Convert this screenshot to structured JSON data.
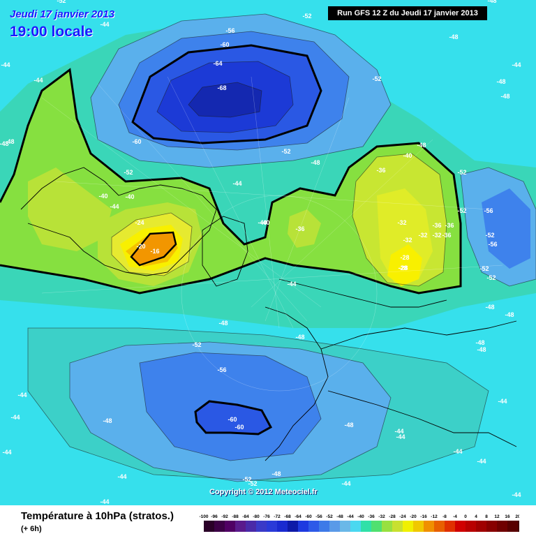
{
  "header": {
    "date": "Jeudi 17 janvier 2013",
    "time": "19:00 locale",
    "run": "Run GFS 12 Z du Jeudi 17 janvier 2013"
  },
  "copyright": "Copyright © 2012 Meteociel.fr",
  "footer": {
    "title": "Température à 10hPa (stratos.)",
    "subtitle": "(+ 6h)"
  },
  "legend": {
    "ticks": [
      "-100",
      "-96",
      "-92",
      "-88",
      "-84",
      "-80",
      "-76",
      "-72",
      "-68",
      "-64",
      "-60",
      "-56",
      "-52",
      "-48",
      "-44",
      "-40",
      "-36",
      "-32",
      "-28",
      "-24",
      "-20",
      "-16",
      "-12",
      "-8",
      "-4",
      "0",
      "4",
      "8",
      "12",
      "16",
      "20"
    ],
    "colors": [
      "#2a0028",
      "#3c0046",
      "#500064",
      "#5a1a8c",
      "#4a2aa8",
      "#3a3ac8",
      "#2a3ad8",
      "#1a2ad0",
      "#0e1aa8",
      "#1e3ae0",
      "#2e5ae8",
      "#3e7ae8",
      "#5a9ae8",
      "#6ab8e8",
      "#4ad8f0",
      "#30e0a8",
      "#50e070",
      "#98e040",
      "#c8e030",
      "#f0f000",
      "#f0c800",
      "#f09000",
      "#e86000",
      "#e03000",
      "#d00000",
      "#b80000",
      "#a00000",
      "#880000",
      "#700000",
      "#580000",
      "#400000"
    ]
  },
  "contour_labels": [
    {
      "text": "-52"
    },
    {
      "text": "-48"
    },
    {
      "text": "-44"
    },
    {
      "text": "-44"
    },
    {
      "text": "-44"
    },
    {
      "text": "-48"
    },
    {
      "text": "-52"
    },
    {
      "text": "-52"
    },
    {
      "text": "-56"
    },
    {
      "text": "-60"
    },
    {
      "text": "-64"
    },
    {
      "text": "-68"
    },
    {
      "text": "-60"
    },
    {
      "text": "-52"
    },
    {
      "text": "-48"
    },
    {
      "text": "-52"
    },
    {
      "text": "-48"
    },
    {
      "text": "-48"
    },
    {
      "text": "-48"
    },
    {
      "text": "-44"
    },
    {
      "text": "-48"
    },
    {
      "text": "-48"
    },
    {
      "text": "-52"
    },
    {
      "text": "-40"
    },
    {
      "text": "-44"
    },
    {
      "text": "-40"
    },
    {
      "text": "-44"
    },
    {
      "text": "-40"
    },
    {
      "text": "-44"
    },
    {
      "text": "-36"
    },
    {
      "text": "-32"
    },
    {
      "text": "-28"
    },
    {
      "text": "-24"
    },
    {
      "text": "-20"
    },
    {
      "text": "-16"
    },
    {
      "text": "-40"
    },
    {
      "text": "-36"
    },
    {
      "text": "-40"
    },
    {
      "text": "-36"
    },
    {
      "text": "-32"
    },
    {
      "text": "-32"
    },
    {
      "text": "-36"
    },
    {
      "text": "-32"
    },
    {
      "text": "-36"
    },
    {
      "text": "-28"
    },
    {
      "text": "-28"
    },
    {
      "text": "-52"
    },
    {
      "text": "-56"
    },
    {
      "text": "-52"
    },
    {
      "text": "-56"
    },
    {
      "text": "-52"
    },
    {
      "text": "-52"
    },
    {
      "text": "-48"
    },
    {
      "text": "-48"
    },
    {
      "text": "-48"
    },
    {
      "text": "-48"
    },
    {
      "text": "-48"
    },
    {
      "text": "-48"
    },
    {
      "text": "-48"
    },
    {
      "text": "-52"
    },
    {
      "text": "-56"
    },
    {
      "text": "-60"
    },
    {
      "text": "-60"
    },
    {
      "text": "-44"
    },
    {
      "text": "-44"
    },
    {
      "text": "-44"
    },
    {
      "text": "-44"
    },
    {
      "text": "-48"
    },
    {
      "text": "-44"
    },
    {
      "text": "-44"
    },
    {
      "text": "-44"
    },
    {
      "text": "-48"
    },
    {
      "text": "-44"
    },
    {
      "text": "-52"
    },
    {
      "text": "-52"
    },
    {
      "text": "-44"
    },
    {
      "text": "-44"
    },
    {
      "text": "-44"
    },
    {
      "text": "-44"
    }
  ]
}
